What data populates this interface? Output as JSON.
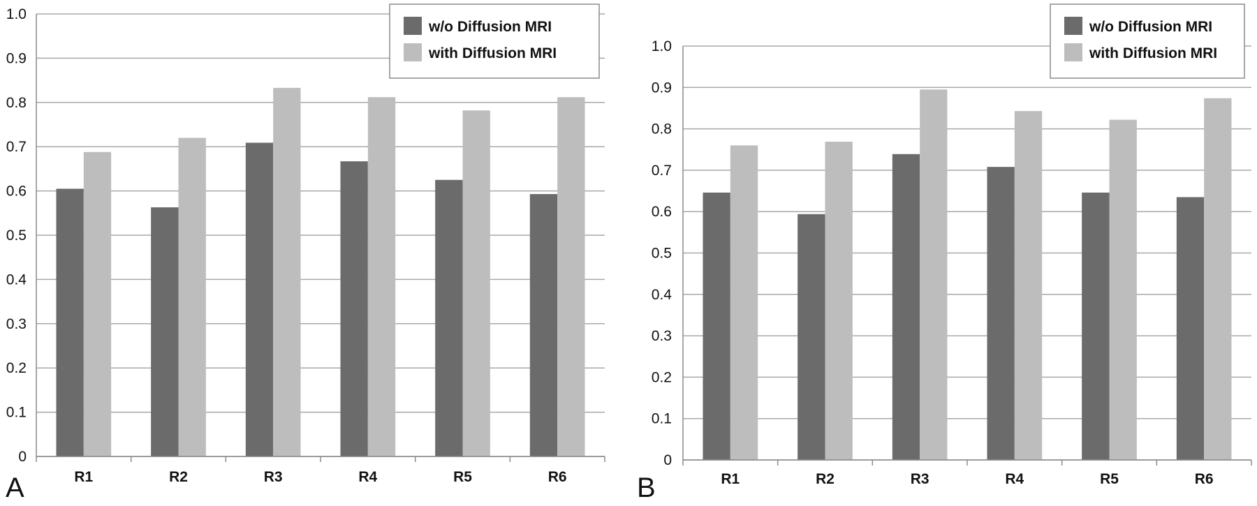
{
  "chart_data": [
    {
      "type": "bar",
      "panel_label": "A",
      "categories": [
        "R1",
        "R2",
        "R3",
        "R4",
        "R5",
        "R6"
      ],
      "series": [
        {
          "name": "w/o Diffusion MRI",
          "color": "#6b6b6b",
          "values": [
            0.605,
            0.563,
            0.709,
            0.667,
            0.625,
            0.593
          ]
        },
        {
          "name": "with Diffusion MRI",
          "color": "#bdbdbd",
          "values": [
            0.688,
            0.72,
            0.833,
            0.812,
            0.782,
            0.812
          ]
        }
      ],
      "ylim": [
        0,
        1.0
      ],
      "yticks": [
        "0",
        "0.1",
        "0.2",
        "0.3",
        "0.4",
        "0.5",
        "0.6",
        "0.7",
        "0.8",
        "0.9",
        "1.0"
      ],
      "grid": true,
      "legend_position": "top-right"
    },
    {
      "type": "bar",
      "panel_label": "B",
      "categories": [
        "R1",
        "R2",
        "R3",
        "R4",
        "R5",
        "R6"
      ],
      "series": [
        {
          "name": "w/o Diffusion MRI",
          "color": "#6b6b6b",
          "values": [
            0.646,
            0.594,
            0.739,
            0.708,
            0.646,
            0.635
          ]
        },
        {
          "name": "with Diffusion MRI",
          "color": "#bdbdbd",
          "values": [
            0.76,
            0.769,
            0.895,
            0.843,
            0.822,
            0.874
          ]
        }
      ],
      "ylim": [
        0,
        1.0
      ],
      "yticks": [
        "0",
        "0.1",
        "0.2",
        "0.3",
        "0.4",
        "0.5",
        "0.6",
        "0.7",
        "0.8",
        "0.9",
        "1.0"
      ],
      "grid": true,
      "legend_position": "top-right"
    }
  ]
}
